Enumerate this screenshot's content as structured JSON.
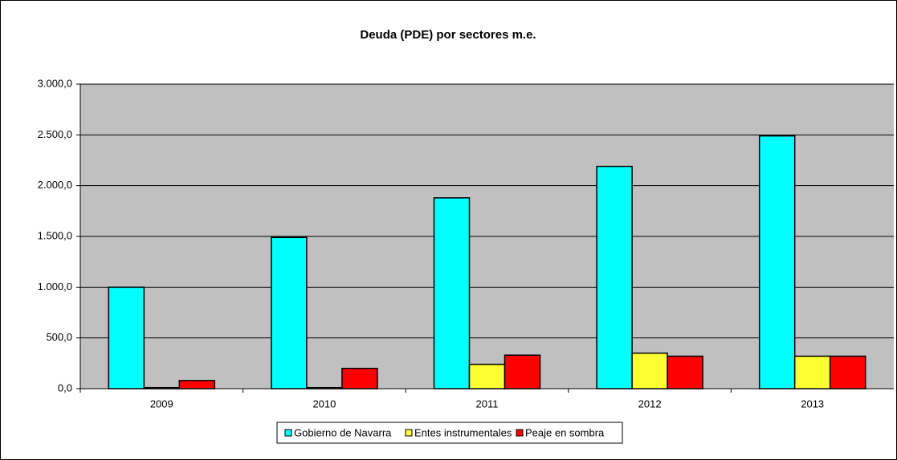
{
  "chart_data": {
    "type": "bar",
    "title": "Deuda (PDE) por sectores m.e.",
    "categories": [
      "2009",
      "2010",
      "2011",
      "2012",
      "2013"
    ],
    "series": [
      {
        "name": "Gobierno de Navarra",
        "color": "#00ffff",
        "values": [
          1000,
          1490,
          1880,
          2190,
          2490
        ]
      },
      {
        "name": "Entes instrumentales",
        "color": "#ffff33",
        "values": [
          10,
          10,
          240,
          350,
          320
        ]
      },
      {
        "name": "Peaje en sombra",
        "color": "#ff0000",
        "values": [
          80,
          200,
          330,
          320,
          320
        ]
      }
    ],
    "ylim": [
      0,
      3000
    ],
    "yticks": [
      {
        "value": 0,
        "label": "0,0"
      },
      {
        "value": 500,
        "label": "500,0"
      },
      {
        "value": 1000,
        "label": "1.000,0"
      },
      {
        "value": 1500,
        "label": "1.500,0"
      },
      {
        "value": 2000,
        "label": "2.000,0"
      },
      {
        "value": 2500,
        "label": "2.500,0"
      },
      {
        "value": 3000,
        "label": "3.000,0"
      }
    ],
    "grid": true,
    "legend": "bottom"
  }
}
